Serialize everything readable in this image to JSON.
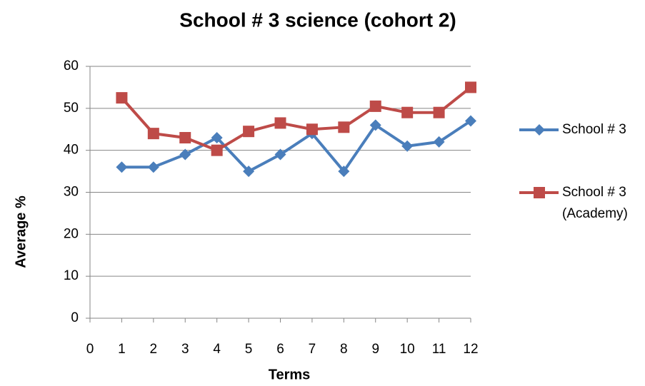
{
  "chart_data": {
    "type": "line",
    "title": "School # 3 science (cohort 2)",
    "x_label": "Terms",
    "y_label": "Average %",
    "x": [
      1,
      2,
      3,
      4,
      5,
      6,
      7,
      8,
      9,
      10,
      11,
      12
    ],
    "series": [
      {
        "name": "School # 3",
        "color": "#4a7ebb",
        "marker": "diamond",
        "values": [
          36,
          36,
          39,
          43,
          35,
          39,
          44,
          35,
          46,
          41,
          42,
          47
        ]
      },
      {
        "name": "School # 3 (Academy)",
        "color": "#be4b48",
        "marker": "square",
        "values": [
          52.5,
          44,
          43,
          40,
          44.5,
          46.5,
          45,
          45.5,
          50.5,
          49,
          49,
          55
        ]
      }
    ],
    "xlim": [
      0,
      12
    ],
    "xticks": [
      0,
      1,
      2,
      3,
      4,
      5,
      6,
      7,
      8,
      9,
      10,
      11,
      12
    ],
    "ylim": [
      0,
      60
    ],
    "yticks": [
      0,
      10,
      20,
      30,
      40,
      50,
      60
    ],
    "grid": true,
    "legend": "right"
  }
}
